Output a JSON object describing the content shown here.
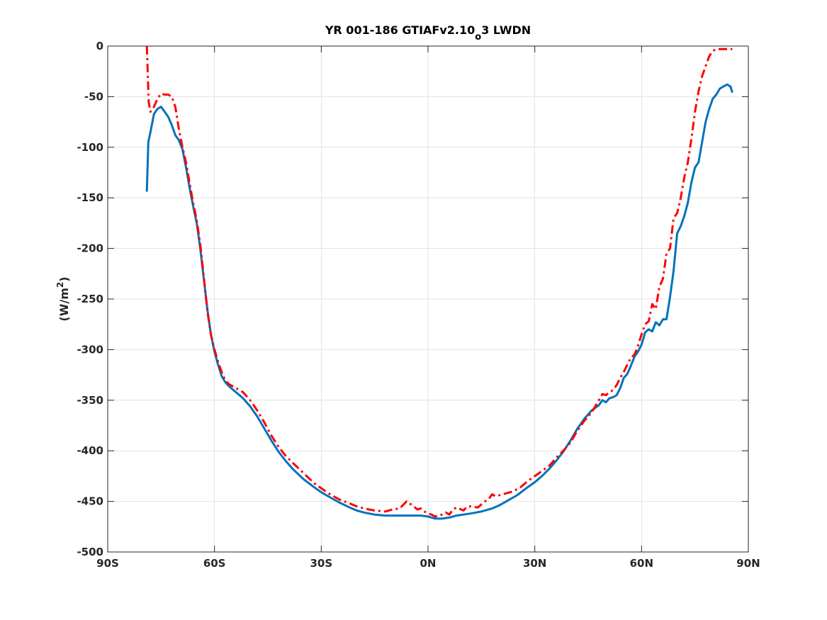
{
  "chart_data": {
    "type": "line",
    "title_main": "YR 001-186 GTIAFv2.10",
    "title_sub": "o",
    "title_tail": "3 LWDN",
    "ylabel_main": "(W/m",
    "ylabel_sup": "2",
    "ylabel_tail": ")",
    "xlim": [
      -90,
      90
    ],
    "ylim": [
      -500,
      0
    ],
    "xticks": [
      -90,
      -60,
      -30,
      0,
      30,
      60,
      90
    ],
    "xtick_labels": [
      "90S",
      "60S",
      "30S",
      "0N",
      "30N",
      "60N",
      "90N"
    ],
    "yticks": [
      0,
      -50,
      -100,
      -150,
      -200,
      -250,
      -300,
      -350,
      -400,
      -450,
      -500
    ],
    "ytick_labels": [
      "0",
      "-50",
      "-100",
      "-150",
      "-200",
      "-250",
      "-300",
      "-350",
      "-400",
      "-450",
      "-500"
    ],
    "grid": true,
    "series": [
      {
        "color": "#0072BD",
        "style": "solid",
        "x": [
          -79,
          -78.6,
          -78,
          -77,
          -76,
          -75,
          -74,
          -73,
          -72,
          -71,
          -70,
          -69,
          -68,
          -67,
          -66,
          -65,
          -64,
          -63,
          -62,
          -61,
          -60,
          -59,
          -58,
          -57,
          -56,
          -55,
          -52,
          -50,
          -48,
          -46,
          -44,
          -42,
          -40,
          -38,
          -35,
          -32,
          -30,
          -28,
          -25,
          -22,
          -20,
          -18,
          -15,
          -12,
          -10,
          -8,
          -6,
          -4,
          -2,
          0,
          1,
          2,
          4,
          6,
          8,
          10,
          12,
          15,
          18,
          20,
          22,
          25,
          28,
          30,
          32,
          34,
          36,
          38,
          40,
          42,
          44,
          46,
          48,
          49,
          50,
          51,
          52,
          53,
          54,
          55,
          56,
          57,
          58,
          59,
          60,
          61,
          62,
          63,
          64,
          65,
          66,
          67,
          68,
          69,
          70,
          71,
          72,
          73,
          74,
          75,
          76,
          77,
          78,
          79,
          80,
          81,
          82,
          83,
          84,
          85,
          85.5
        ],
        "y": [
          -144,
          -95,
          -85,
          -67,
          -62,
          -60,
          -65,
          -70,
          -78,
          -88,
          -93,
          -102,
          -120,
          -140,
          -158,
          -175,
          -200,
          -230,
          -260,
          -285,
          -302,
          -315,
          -326,
          -332,
          -336,
          -339,
          -348,
          -356,
          -366,
          -378,
          -390,
          -401,
          -410,
          -418,
          -428,
          -436,
          -441,
          -445,
          -451,
          -456,
          -459,
          -461,
          -463,
          -464,
          -464,
          -464,
          -464,
          -464,
          -464,
          -465,
          -466,
          -467,
          -467,
          -466,
          -464,
          -463,
          -462,
          -460,
          -457,
          -454,
          -450,
          -444,
          -436,
          -431,
          -425,
          -418,
          -410,
          -401,
          -390,
          -378,
          -368,
          -360,
          -355,
          -350,
          -352,
          -348,
          -347,
          -345,
          -338,
          -328,
          -324,
          -316,
          -307,
          -302,
          -295,
          -283,
          -280,
          -282,
          -273,
          -276,
          -270,
          -270,
          -248,
          -222,
          -185,
          -178,
          -168,
          -155,
          -135,
          -120,
          -115,
          -95,
          -75,
          -62,
          -52,
          -48,
          -42,
          -40,
          -38,
          -40,
          -46
        ]
      },
      {
        "color": "#FF0000",
        "style": "dashdot",
        "x": [
          -79,
          -78.5,
          -78,
          -77,
          -76,
          -75,
          -74,
          -73,
          -72,
          -71,
          -70,
          -69,
          -68,
          -67,
          -66,
          -65,
          -64,
          -63,
          -62,
          -61,
          -60,
          -59,
          -58,
          -57,
          -56,
          -55,
          -52,
          -50,
          -48,
          -46,
          -44,
          -42,
          -40,
          -38,
          -35,
          -32,
          -30,
          -28,
          -25,
          -22,
          -20,
          -18,
          -15,
          -12,
          -10,
          -8,
          -6,
          -4,
          -3,
          -2,
          -1,
          0,
          1,
          2,
          3,
          4,
          5,
          6,
          7,
          8,
          10,
          11,
          12,
          14,
          15,
          16,
          17,
          18,
          19,
          20,
          22,
          24,
          26,
          28,
          30,
          32,
          34,
          36,
          38,
          40,
          42,
          44,
          46,
          48,
          49,
          50,
          51,
          52,
          53,
          54,
          55,
          56,
          57,
          58,
          59,
          60,
          61,
          62,
          63,
          64,
          65,
          66,
          67,
          68,
          69,
          70,
          71,
          72,
          73,
          74,
          75,
          76,
          77,
          78,
          79,
          80,
          81,
          82,
          83,
          84,
          85,
          85.5
        ],
        "y": [
          0,
          -55,
          -65,
          -60,
          -52,
          -47,
          -48,
          -48,
          -50,
          -60,
          -82,
          -100,
          -115,
          -135,
          -155,
          -172,
          -196,
          -228,
          -262,
          -285,
          -300,
          -312,
          -322,
          -330,
          -334,
          -336,
          -342,
          -350,
          -360,
          -372,
          -385,
          -396,
          -405,
          -412,
          -422,
          -432,
          -437,
          -442,
          -448,
          -452,
          -455,
          -457,
          -459,
          -460,
          -458,
          -457,
          -450,
          -455,
          -458,
          -457,
          -460,
          -462,
          -463,
          -465,
          -464,
          -463,
          -461,
          -463,
          -458,
          -456,
          -459,
          -455,
          -455,
          -456,
          -453,
          -450,
          -448,
          -443,
          -445,
          -444,
          -442,
          -440,
          -436,
          -430,
          -425,
          -420,
          -415,
          -407,
          -400,
          -392,
          -380,
          -370,
          -362,
          -350,
          -344,
          -345,
          -342,
          -340,
          -335,
          -328,
          -322,
          -315,
          -308,
          -305,
          -296,
          -285,
          -275,
          -272,
          -255,
          -260,
          -238,
          -230,
          -205,
          -200,
          -170,
          -165,
          -150,
          -130,
          -115,
          -92,
          -65,
          -45,
          -30,
          -20,
          -10,
          -5,
          -3,
          -3,
          -3,
          -3,
          -3,
          -3
        ]
      }
    ]
  }
}
